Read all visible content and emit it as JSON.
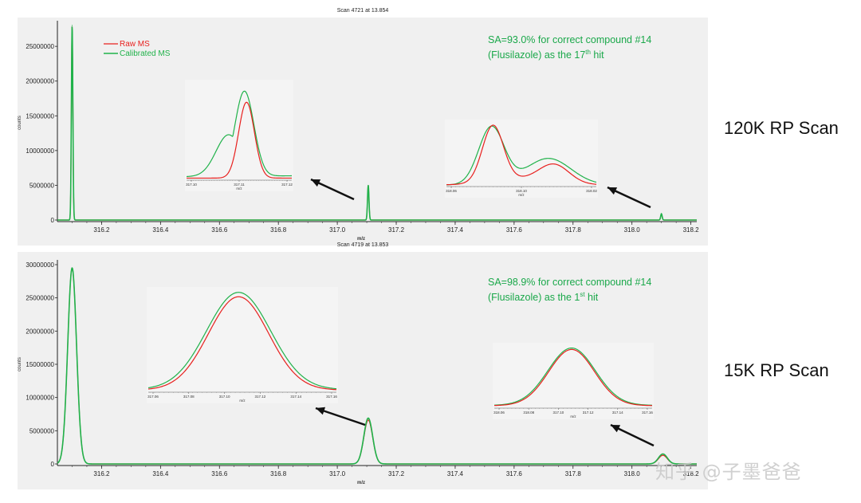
{
  "colors": {
    "raw": "#e8201e",
    "calibrated": "#20b24a",
    "annotation": "#1aa84a",
    "axis": "#222222"
  },
  "side_labels": {
    "top": "120K RP Scan",
    "bottom": "15K RP Scan"
  },
  "watermark": "知乎 @子墨爸爸",
  "chart_data": [
    {
      "type": "line",
      "title": "Scan 4721 at 13.854",
      "xlabel": "m/z",
      "ylabel": "counts",
      "xlim": [
        316.05,
        318.22
      ],
      "ylim": [
        0,
        28000000
      ],
      "xticks": [
        316.2,
        316.4,
        316.6,
        316.8,
        317.0,
        317.2,
        317.4,
        317.6,
        317.8,
        318.0,
        318.2
      ],
      "yticks": [
        0,
        5000000,
        10000000,
        15000000,
        20000000,
        25000000
      ],
      "ytick_labels": [
        "0",
        "5000000",
        "10000000",
        "15000000",
        "20000000",
        "25000000"
      ],
      "legend": [
        "Raw MS",
        "Calibrated MS"
      ],
      "legend_position": "top-left",
      "annotation_lines": [
        "SA=93.0% for correct compound #14",
        "(Flusilazole) as the 17",
        "th",
        " hit"
      ],
      "peak_width": 0.0025,
      "peaks": [
        {
          "x": 316.1,
          "raw": 28000000,
          "calibrated": 28000000
        },
        {
          "x": 317.105,
          "raw": 5000000,
          "calibrated": 5000000
        },
        {
          "x": 318.1,
          "raw": 800000,
          "calibrated": 900000
        }
      ],
      "insets": [
        {
          "xticks": [
            "317.10",
            "317.11",
            "317.12"
          ],
          "xlabel": "m/z"
        },
        {
          "xticks": [
            "318.06",
            "318.10",
            "318.02"
          ],
          "xlabel": "m/z"
        }
      ]
    },
    {
      "type": "line",
      "title": "Scan 4719 at 13.853",
      "xlabel": "m/z",
      "ylabel": "counts",
      "xlim": [
        316.05,
        318.22
      ],
      "ylim": [
        0,
        30000000
      ],
      "xticks": [
        316.2,
        316.4,
        316.6,
        316.8,
        317.0,
        317.2,
        317.4,
        317.6,
        317.8,
        318.0,
        318.2
      ],
      "yticks": [
        0,
        5000000,
        10000000,
        15000000,
        20000000,
        25000000,
        30000000
      ],
      "ytick_labels": [
        "0",
        "5000000",
        "10000000",
        "15000000",
        "20000000",
        "25000000",
        "30000000"
      ],
      "annotation_lines": [
        "SA=98.9% for correct compound #14",
        "(Flusilazole) as the 1",
        "st",
        " hit"
      ],
      "peak_width": 0.015,
      "peaks": [
        {
          "x": 316.1,
          "raw": 29500000,
          "calibrated": 29500000
        },
        {
          "x": 317.105,
          "raw": 6600000,
          "calibrated": 6900000
        },
        {
          "x": 318.105,
          "raw": 1300000,
          "calibrated": 1500000
        }
      ],
      "insets": [
        {
          "xticks": [
            "317.06",
            "317.08",
            "317.10",
            "317.12",
            "317.14",
            "317.16"
          ],
          "xlabel": "m/z"
        },
        {
          "xticks": [
            "318.06",
            "318.08",
            "317.10",
            "317.12",
            "317.14",
            "317.16"
          ],
          "xlabel": "m/z"
        }
      ]
    }
  ]
}
